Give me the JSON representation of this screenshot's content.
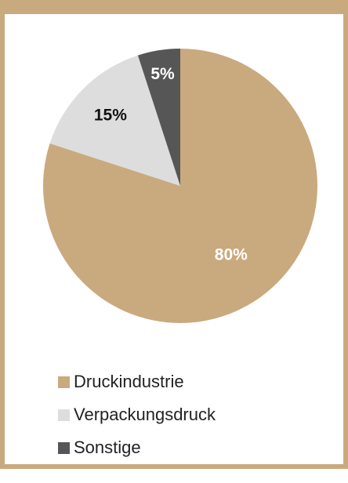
{
  "chart_data": {
    "type": "pie",
    "title": "",
    "start_angle_deg": 0,
    "direction": "clockwise",
    "legend_position": "bottom-left",
    "slices": [
      {
        "key": "druckindustrie",
        "label": "Druckindustrie",
        "value": 80,
        "value_label": "80%",
        "color": "#c9aa7e",
        "label_color": "#ffffff"
      },
      {
        "key": "verpackungsdruck",
        "label": "Verpackungsdruck",
        "value": 15,
        "value_label": "15%",
        "color": "#dddddd",
        "label_color": "#111111"
      },
      {
        "key": "sonstige",
        "label": "Sonstige",
        "value": 5,
        "value_label": "5%",
        "color": "#565656",
        "label_color": "#ffffff"
      }
    ]
  },
  "colors": {
    "frame": "#c9aa7e",
    "background": "#ffffff"
  },
  "legend": {
    "items": [
      {
        "label": "Druckindustrie",
        "color": "#c9aa7e"
      },
      {
        "label": "Verpackungsdruck",
        "color": "#dddddd"
      },
      {
        "label": "Sonstige",
        "color": "#565656"
      }
    ]
  }
}
